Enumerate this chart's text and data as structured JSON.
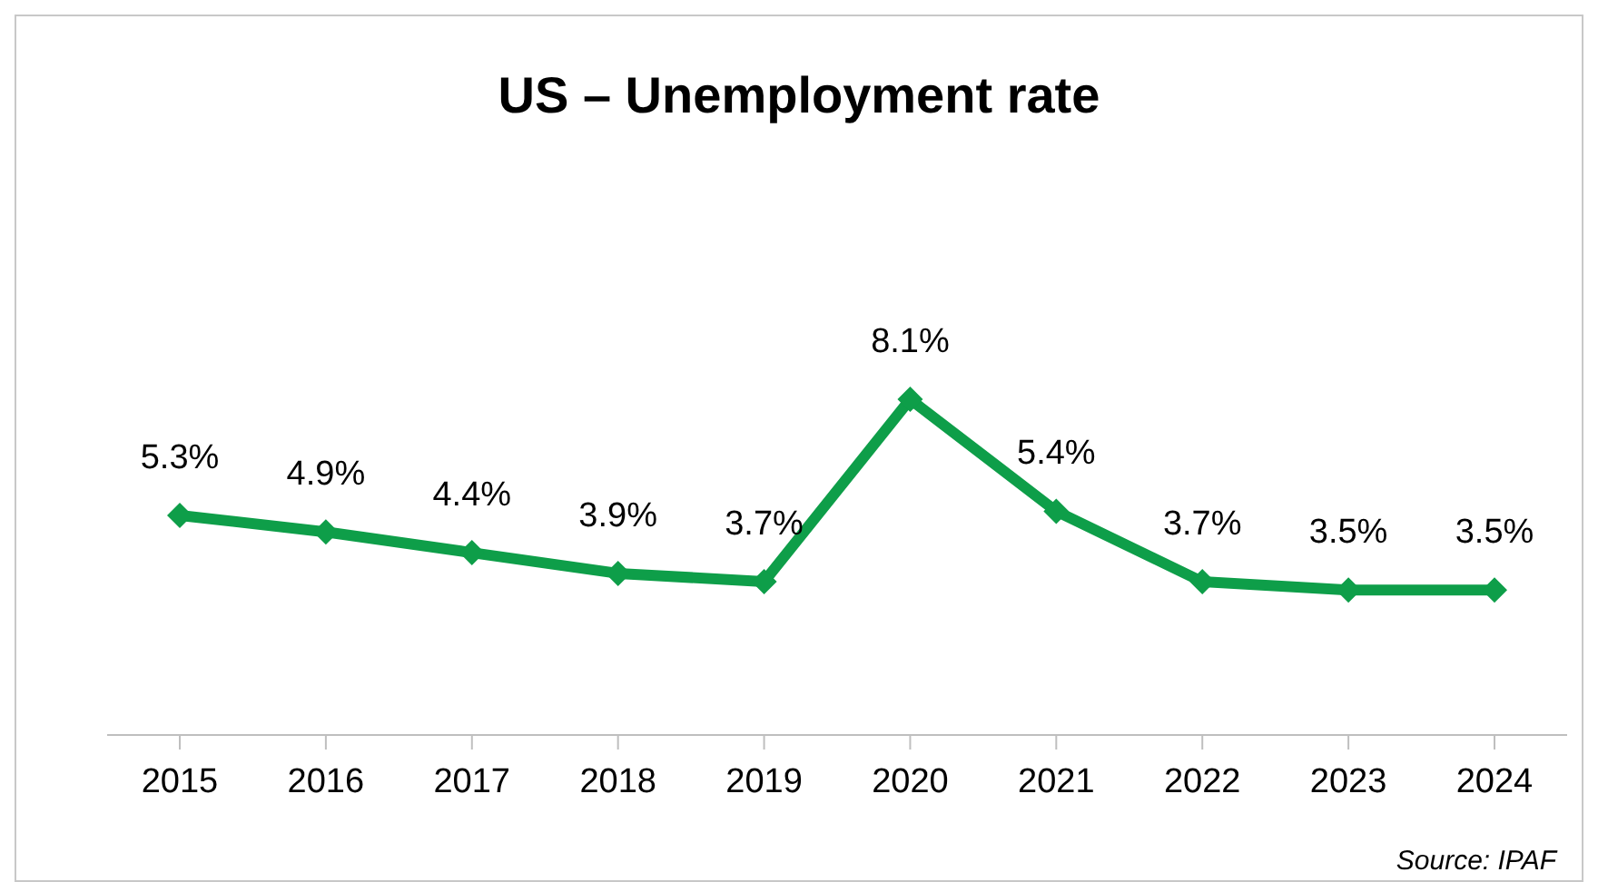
{
  "chart_data": {
    "type": "line",
    "title": "US – Unemployment rate",
    "categories": [
      "2015",
      "2016",
      "2017",
      "2018",
      "2019",
      "2020",
      "2021",
      "2022",
      "2023",
      "2024"
    ],
    "series": [
      {
        "color": "#0e9e49",
        "values": [
          5.3,
          4.9,
          4.4,
          3.9,
          3.7,
          8.1,
          5.4,
          3.7,
          3.5,
          3.5
        ],
        "value_labels": [
          "5.3%",
          "4.9%",
          "4.4%",
          "3.9%",
          "3.7%",
          "8.1%",
          "5.4%",
          "3.7%",
          "3.5%",
          "3.5%"
        ]
      }
    ],
    "marker": "diamond",
    "line_style": "solid",
    "grid": false,
    "legend": false,
    "annotations": [
      "Source: IPAF"
    ]
  }
}
